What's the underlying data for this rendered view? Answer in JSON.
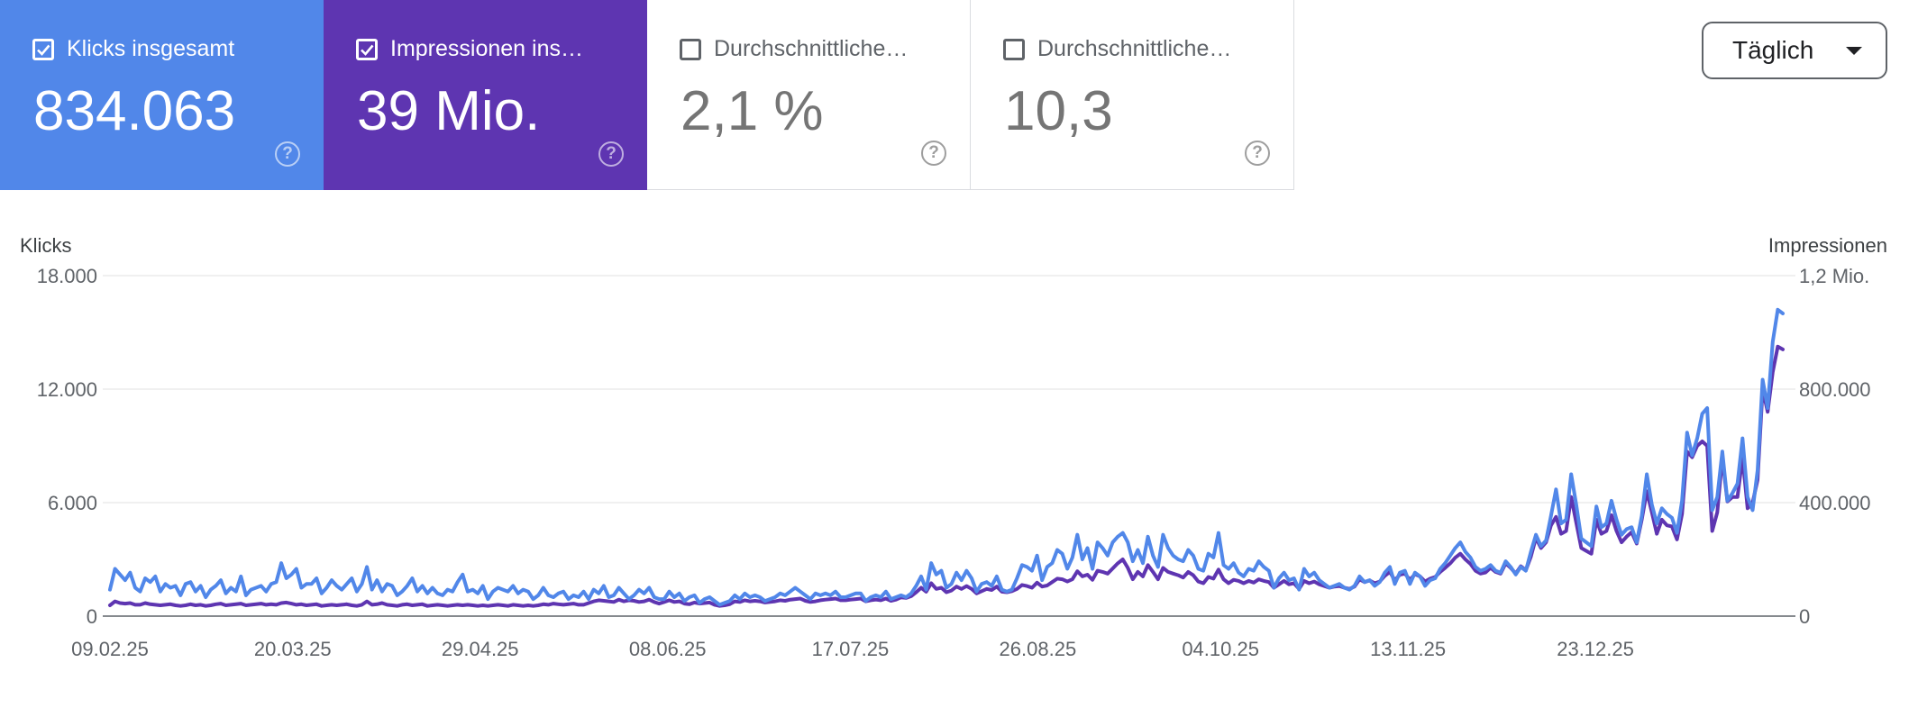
{
  "metrics": [
    {
      "label": "Klicks insgesamt",
      "value": "834.063",
      "checked": true,
      "color": "#5187e9"
    },
    {
      "label": "Impressionen ins…",
      "value": "39 Mio.",
      "checked": true,
      "color": "#5e35b1"
    },
    {
      "label": "Durchschnittliche…",
      "value": "2,1 %",
      "checked": false
    },
    {
      "label": "Durchschnittliche…",
      "value": "10,3",
      "checked": false
    }
  ],
  "help_glyph": "?",
  "granularity": {
    "label": "Täglich",
    "icon": "caret-down-icon"
  },
  "chart_data": {
    "type": "line",
    "x_start": "09.02.25",
    "x_end": "01.02.26",
    "xticks": [
      "09.02.25",
      "20.03.25",
      "29.04.25",
      "08.06.25",
      "17.07.25",
      "26.08.25",
      "04.10.25",
      "13.11.25",
      "23.12.25"
    ],
    "left_axis": {
      "title": "Klicks",
      "ylim": [
        0,
        18000
      ],
      "ticks": [
        0,
        6000,
        12000,
        18000
      ],
      "tick_labels": [
        "0",
        "6.000",
        "12.000",
        "18.000"
      ]
    },
    "right_axis": {
      "title": "Impressionen",
      "ylim": [
        0,
        1200000
      ],
      "ticks": [
        0,
        400000,
        800000,
        1200000
      ],
      "tick_labels": [
        "0",
        "400.000",
        "800.000",
        "1,2 Mio."
      ]
    },
    "grid": true,
    "series": [
      {
        "metric": 0,
        "axis": "left",
        "color": "#5187e9",
        "values": [
          1400,
          2500,
          2200,
          1900,
          2300,
          1500,
          1300,
          2000,
          1800,
          2100,
          1300,
          1700,
          1500,
          1600,
          1100,
          1700,
          1800,
          1300,
          1600,
          1000,
          1400,
          1600,
          1900,
          1200,
          1500,
          1300,
          2100,
          1100,
          1400,
          1500,
          1600,
          1300,
          1700,
          1800,
          2800,
          2000,
          2200,
          2500,
          1500,
          1700,
          1700,
          2000,
          1200,
          1500,
          1900,
          1600,
          1400,
          1700,
          2000,
          1300,
          1700,
          2600,
          1400,
          1900,
          1300,
          1700,
          1600,
          1100,
          1300,
          1600,
          2000,
          1300,
          1600,
          1200,
          1500,
          1200,
          1100,
          1400,
          1300,
          1800,
          2200,
          1300,
          1400,
          1200,
          1600,
          900,
          1300,
          1500,
          1400,
          1300,
          1600,
          1200,
          1400,
          1300,
          900,
          1100,
          1500,
          1100,
          1000,
          1200,
          1300,
          900,
          1100,
          1000,
          1300,
          900,
          1400,
          1200,
          1600,
          1000,
          1100,
          1500,
          1200,
          900,
          1100,
          1400,
          1200,
          1500,
          1000,
          900,
          900,
          1300,
          1000,
          1200,
          800,
          1000,
          1100,
          700,
          900,
          1000,
          800,
          600,
          700,
          800,
          1100,
          900,
          1200,
          1000,
          1100,
          1000,
          800,
          900,
          1000,
          1200,
          1100,
          1300,
          1500,
          1300,
          1100,
          900,
          1200,
          1100,
          1200,
          1100,
          1300,
          1000,
          1000,
          1100,
          1200,
          1200,
          800,
          1000,
          1100,
          1000,
          1300,
          900,
          1000,
          1100,
          1000,
          1200,
          1600,
          2100,
          1400,
          2800,
          2200,
          2400,
          1500,
          1700,
          2300,
          1900,
          2400,
          2000,
          1300,
          1700,
          1800,
          1600,
          2100,
          1400,
          1300,
          1400,
          2000,
          2700,
          2600,
          2400,
          3200,
          1900,
          2600,
          2800,
          3500,
          3300,
          2500,
          3100,
          4300,
          3000,
          3600,
          2500,
          3900,
          3600,
          3200,
          3900,
          4200,
          4400,
          3900,
          2900,
          3500,
          2800,
          4200,
          3200,
          2600,
          4300,
          3600,
          3200,
          3000,
          2900,
          3500,
          3200,
          2500,
          2400,
          3300,
          3100,
          4400,
          2700,
          2500,
          2800,
          2300,
          2100,
          2500,
          2400,
          2900,
          2600,
          2400,
          1500,
          2000,
          2300,
          1900,
          2000,
          1400,
          2500,
          2100,
          2300,
          1900,
          1700,
          1500,
          1600,
          1700,
          1500,
          1400,
          1600,
          2100,
          1800,
          1900,
          1600,
          1800,
          2300,
          2600,
          1700,
          2300,
          2400,
          1700,
          2300,
          2100,
          1600,
          1900,
          2000,
          2500,
          2800,
          3200,
          3600,
          3900,
          3400,
          3100,
          2600,
          2400,
          2500,
          2700,
          2400,
          2300,
          2900,
          2600,
          2200,
          2600,
          2400,
          3400,
          4300,
          3700,
          4000,
          5300,
          6700,
          4900,
          5100,
          7500,
          5900,
          4100,
          3900,
          3700,
          5800,
          4700,
          4900,
          6100,
          5100,
          4300,
          4600,
          4700,
          3900,
          5300,
          7500,
          5900,
          4900,
          5700,
          5400,
          5200,
          4400,
          6100,
          9700,
          8500,
          9400,
          10700,
          11000,
          5600,
          6300,
          8700,
          6100,
          6500,
          7000,
          9400,
          6300,
          5600,
          7700,
          12500,
          11000,
          14500,
          16200,
          16000
        ]
      },
      {
        "metric": 1,
        "axis": "right",
        "color": "#5e35b1",
        "values": [
          38000,
          52000,
          46000,
          44000,
          46000,
          40000,
          40000,
          46000,
          42000,
          40000,
          38000,
          40000,
          42000,
          38000,
          36000,
          38000,
          42000,
          38000,
          40000,
          36000,
          38000,
          42000,
          44000,
          38000,
          40000,
          42000,
          44000,
          38000,
          40000,
          42000,
          44000,
          40000,
          42000,
          40000,
          46000,
          48000,
          44000,
          40000,
          42000,
          38000,
          40000,
          42000,
          36000,
          38000,
          40000,
          38000,
          40000,
          42000,
          38000,
          36000,
          40000,
          52000,
          40000,
          42000,
          46000,
          40000,
          38000,
          36000,
          40000,
          42000,
          38000,
          40000,
          42000,
          36000,
          38000,
          40000,
          38000,
          36000,
          38000,
          40000,
          38000,
          40000,
          38000,
          36000,
          38000,
          36000,
          38000,
          40000,
          38000,
          36000,
          40000,
          38000,
          36000,
          38000,
          36000,
          38000,
          42000,
          40000,
          44000,
          42000,
          40000,
          42000,
          44000,
          40000,
          40000,
          46000,
          52000,
          56000,
          54000,
          52000,
          50000,
          58000,
          52000,
          56000,
          54000,
          50000,
          52000,
          58000,
          50000,
          44000,
          50000,
          56000,
          50000,
          52000,
          44000,
          42000,
          48000,
          44000,
          46000,
          48000,
          40000,
          36000,
          38000,
          42000,
          52000,
          50000,
          56000,
          52000,
          54000,
          52000,
          48000,
          50000,
          52000,
          56000,
          54000,
          58000,
          60000,
          62000,
          54000,
          50000,
          52000,
          56000,
          58000,
          60000,
          62000,
          56000,
          56000,
          58000,
          60000,
          62000,
          52000,
          56000,
          58000,
          56000,
          62000,
          54000,
          58000,
          66000,
          64000,
          70000,
          84000,
          100000,
          86000,
          116000,
          96000,
          100000,
          84000,
          90000,
          104000,
          96000,
          106000,
          96000,
          80000,
          88000,
          96000,
          92000,
          104000,
          86000,
          84000,
          88000,
          96000,
          110000,
          106000,
          100000,
          118000,
          104000,
          108000,
          120000,
          132000,
          130000,
          122000,
          130000,
          158000,
          140000,
          146000,
          128000,
          160000,
          156000,
          150000,
          168000,
          186000,
          200000,
          170000,
          130000,
          156000,
          140000,
          180000,
          156000,
          130000,
          170000,
          156000,
          150000,
          144000,
          136000,
          156000,
          144000,
          122000,
          116000,
          138000,
          132000,
          164000,
          130000,
          116000,
          128000,
          124000,
          116000,
          124000,
          118000,
          130000,
          124000,
          120000,
          100000,
          112000,
          124000,
          112000,
          116000,
          96000,
          124000,
          116000,
          122000,
          112000,
          106000,
          100000,
          104000,
          106000,
          100000,
          96000,
          104000,
          130000,
          120000,
          126000,
          116000,
          122000,
          142000,
          156000,
          126000,
          146000,
          150000,
          128000,
          148000,
          140000,
          122000,
          132000,
          138000,
          156000,
          170000,
          186000,
          206000,
          220000,
          200000,
          184000,
          160000,
          150000,
          154000,
          170000,
          156000,
          150000,
          186000,
          170000,
          150000,
          176000,
          162000,
          210000,
          276000,
          240000,
          260000,
          320000,
          350000,
          290000,
          300000,
          420000,
          330000,
          240000,
          230000,
          220000,
          340000,
          290000,
          300000,
          356000,
          300000,
          260000,
          280000,
          296000,
          256000,
          340000,
          440000,
          366000,
          290000,
          340000,
          320000,
          316000,
          270000,
          360000,
          580000,
          560000,
          600000,
          616000,
          600000,
          300000,
          366000,
          560000,
          404000,
          420000,
          420000,
          560000,
          380000,
          400000,
          480000,
          800000,
          720000,
          860000,
          950000,
          940000
        ]
      }
    ]
  }
}
